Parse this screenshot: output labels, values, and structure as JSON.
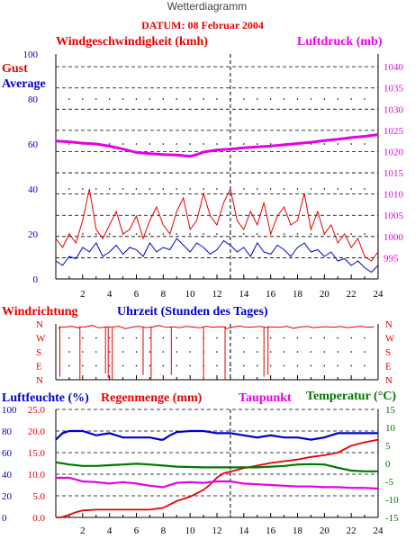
{
  "title": "Wetterdiagramm",
  "datum": "DATUM: 08 Februar 2004",
  "colors": {
    "red": "#e60000",
    "blue": "#0000cc",
    "magenta": "#e600e6",
    "green": "#007700",
    "axis": "#000000",
    "title": "#444444"
  },
  "chart_data": [
    {
      "type": "line",
      "labels": {
        "wind_title": "Windgeschwindigkeit (kmh)",
        "pressure_title": "Luftdruck (mb)",
        "gust": "Gust",
        "average": "Average"
      },
      "x_ticks": [
        "2",
        "4",
        "6",
        "8",
        "10",
        "12",
        "14",
        "16",
        "18",
        "20",
        "22",
        "24"
      ],
      "xlim": [
        0,
        24
      ],
      "left_axis": {
        "ylim": [
          0,
          100
        ],
        "ticks": [
          "0",
          "20",
          "40",
          "60",
          "80",
          "100"
        ]
      },
      "right_axis": {
        "ylim": [
          990,
          1043
        ],
        "ticks": [
          "995",
          "1000",
          "1005",
          "1010",
          "1015",
          "1020",
          "1025",
          "1030",
          "1035",
          "1040"
        ]
      },
      "series": [
        {
          "name": "Gust",
          "x": [
            0,
            0.5,
            1,
            1.5,
            2,
            2.5,
            3,
            3.5,
            4,
            4.5,
            5,
            5.5,
            6,
            6.5,
            7,
            7.5,
            8,
            8.5,
            9,
            9.5,
            10,
            10.5,
            11,
            11.5,
            12,
            12.5,
            13,
            13.5,
            14,
            14.5,
            15,
            15.5,
            16,
            16.5,
            17,
            17.5,
            18,
            18.5,
            19,
            19.5,
            20,
            20.5,
            21,
            21.5,
            22,
            22.5,
            23,
            23.5,
            24
          ],
          "y": [
            18,
            14,
            20,
            16,
            26,
            40,
            22,
            18,
            24,
            30,
            20,
            22,
            28,
            18,
            26,
            32,
            24,
            20,
            30,
            36,
            22,
            26,
            38,
            28,
            24,
            34,
            40,
            26,
            22,
            30,
            24,
            34,
            20,
            28,
            32,
            24,
            26,
            38,
            22,
            30,
            20,
            24,
            16,
            20,
            14,
            18,
            10,
            8,
            12
          ]
        },
        {
          "name": "Average",
          "x": [
            0,
            0.5,
            1,
            1.5,
            2,
            2.5,
            3,
            3.5,
            4,
            4.5,
            5,
            5.5,
            6,
            6.5,
            7,
            7.5,
            8,
            8.5,
            9,
            9.5,
            10,
            10.5,
            11,
            11.5,
            12,
            12.5,
            13,
            13.5,
            14,
            14.5,
            15,
            15.5,
            16,
            16.5,
            17,
            17.5,
            18,
            18.5,
            19,
            19.5,
            20,
            20.5,
            21,
            21.5,
            22,
            22.5,
            23,
            23.5,
            24
          ],
          "y": [
            8,
            6,
            10,
            9,
            14,
            12,
            16,
            10,
            12,
            15,
            11,
            14,
            13,
            10,
            16,
            12,
            14,
            13,
            18,
            15,
            12,
            16,
            14,
            11,
            13,
            17,
            15,
            12,
            14,
            10,
            16,
            12,
            11,
            15,
            13,
            10,
            14,
            16,
            12,
            13,
            10,
            12,
            8,
            9,
            6,
            8,
            5,
            3,
            6
          ]
        },
        {
          "name": "Luftdruck",
          "x": [
            0,
            1,
            2,
            3,
            4,
            5,
            6,
            7,
            8,
            9,
            10,
            10.5,
            11,
            12,
            13,
            14,
            15,
            16,
            17,
            18,
            19,
            20,
            21,
            22,
            23,
            24
          ],
          "y": [
            1022.5,
            1022.3,
            1022,
            1021.8,
            1021.3,
            1020.6,
            1019.8,
            1019.5,
            1019.3,
            1019.2,
            1018.9,
            1019.3,
            1019.9,
            1020.4,
            1020.6,
            1020.9,
            1021.1,
            1021.3,
            1021.6,
            1021.9,
            1022.2,
            1022.6,
            1022.9,
            1023.3,
            1023.6,
            1024
          ]
        }
      ]
    },
    {
      "type": "scatter",
      "labels": {
        "windrichtung": "Windrichtung",
        "uhrzeit": "Uhrzeit (Stunden des Tages)"
      },
      "y_categories": [
        "N",
        "W",
        "S",
        "E",
        "N"
      ],
      "series": [
        {
          "name": "Windrichtung",
          "x": [
            0.2,
            0.7,
            1.2,
            1.7,
            2.2,
            2.7,
            3.2,
            3.7,
            4.2,
            4.7,
            5.2,
            5.7,
            6.2,
            6.7,
            7.2,
            7.7,
            8.2,
            8.7,
            9.2,
            9.7,
            10.2,
            10.7,
            11.2,
            11.7,
            12.2,
            12.7,
            13.2,
            13.7,
            14.2,
            14.7,
            15.2,
            15.7,
            16.2,
            16.7,
            17.2,
            17.7,
            18.2,
            18.7,
            19.2,
            19.7,
            20.2,
            20.7,
            21.2,
            21.7,
            22.2,
            22.7,
            23.2,
            23.7
          ],
          "y": [
            330,
            340,
            345,
            335,
            340,
            350,
            335,
            342,
            338,
            345,
            330,
            340,
            345,
            336,
            340,
            350,
            338,
            342,
            336,
            344,
            340,
            335,
            345,
            338,
            342,
            330,
            340,
            346,
            338,
            340,
            344,
            336,
            340,
            338,
            345,
            332,
            340,
            344,
            336,
            340,
            342,
            338,
            344,
            336,
            340,
            345,
            338,
            342
          ]
        }
      ],
      "spikes": [
        {
          "x": 0.3,
          "y": 20
        },
        {
          "x": 1.8,
          "y": 0
        },
        {
          "x": 3.7,
          "y": 40
        },
        {
          "x": 3.9,
          "y": 10
        },
        {
          "x": 4.2,
          "y": 0
        },
        {
          "x": 6.5,
          "y": 30
        },
        {
          "x": 7.1,
          "y": 0
        },
        {
          "x": 8.6,
          "y": 30
        },
        {
          "x": 11.0,
          "y": 0
        },
        {
          "x": 12.6,
          "y": 0
        },
        {
          "x": 15.5,
          "y": 20
        },
        {
          "x": 15.8,
          "y": 30
        }
      ]
    },
    {
      "type": "line",
      "labels": {
        "luftfeuchte": "Luftfeuchte (%)",
        "regenmenge": "Regenmenge (mm)",
        "taupunkt": "Taupunkt",
        "temperatur": "Temperatur (°C)"
      },
      "humidity_ticks": [
        "0",
        "20",
        "40",
        "60",
        "80",
        "100"
      ],
      "rain_ticks": [
        "0.0",
        "5.0",
        "10.0",
        "15.0",
        "20.0",
        "25.0"
      ],
      "temp_ticks": [
        "-15",
        "-10",
        "-5",
        "0",
        "5",
        "10",
        "15"
      ],
      "series": [
        {
          "name": "Luftfeuchte",
          "x": [
            0,
            0.5,
            1,
            2,
            3,
            4,
            5,
            6,
            7,
            7.8,
            8,
            8.5,
            9,
            10,
            11,
            12,
            13,
            14,
            15,
            16,
            17,
            18,
            19,
            20,
            21,
            22,
            23,
            24
          ],
          "y": [
            72,
            78,
            80,
            80,
            76,
            78,
            74,
            74,
            74,
            72,
            72,
            76,
            79,
            80,
            80,
            78,
            78,
            76,
            74,
            76,
            74,
            74,
            72,
            74,
            78,
            78,
            78,
            78
          ]
        },
        {
          "name": "Regenmenge",
          "x": [
            0,
            0.4,
            1,
            1.5,
            2,
            3,
            4,
            5,
            6,
            7,
            8,
            9,
            10,
            11,
            11.5,
            12,
            12.5,
            13,
            14,
            15,
            16,
            17,
            18,
            19,
            20,
            21,
            22,
            23,
            24
          ],
          "y": [
            0,
            0,
            0.6,
            1.2,
            1.6,
            1.8,
            1.8,
            1.8,
            1.8,
            1.8,
            2.2,
            3.8,
            4.8,
            6.4,
            7.6,
            9.2,
            10.2,
            10.6,
            11.4,
            12,
            12.6,
            13,
            13.4,
            14,
            14.4,
            15,
            16.6,
            17.4,
            18
          ]
        },
        {
          "name": "Taupunkt",
          "x": [
            0,
            1,
            2,
            3,
            4,
            5,
            6,
            7,
            8,
            9,
            10,
            11,
            12,
            13,
            14,
            15,
            16,
            17,
            18,
            19,
            20,
            21,
            22,
            23,
            24
          ],
          "y": [
            -4,
            -4,
            -5,
            -5.2,
            -5.6,
            -5.2,
            -5.6,
            -6.2,
            -6.6,
            -5.4,
            -5.2,
            -5.4,
            -5,
            -5,
            -5.6,
            -5.8,
            -6,
            -6.2,
            -6.4,
            -6.4,
            -6.6,
            -6.6,
            -6.8,
            -6.8,
            -7
          ]
        },
        {
          "name": "Temperatur",
          "x": [
            0,
            1,
            2,
            3,
            4,
            5,
            6,
            7,
            8,
            9,
            10,
            11,
            12,
            13,
            14,
            15,
            16,
            17,
            18,
            19,
            20,
            21,
            22,
            23,
            24
          ],
          "y": [
            0.3,
            -0.3,
            -0.7,
            -0.7,
            -0.5,
            -0.3,
            -0.1,
            -0.3,
            -0.6,
            -0.9,
            -1,
            -1.1,
            -1.1,
            -1.1,
            -1.1,
            -1.1,
            -0.9,
            -0.7,
            -0.3,
            -0.2,
            -0.3,
            -1.2,
            -2,
            -2.2,
            -2.2
          ]
        }
      ]
    }
  ]
}
